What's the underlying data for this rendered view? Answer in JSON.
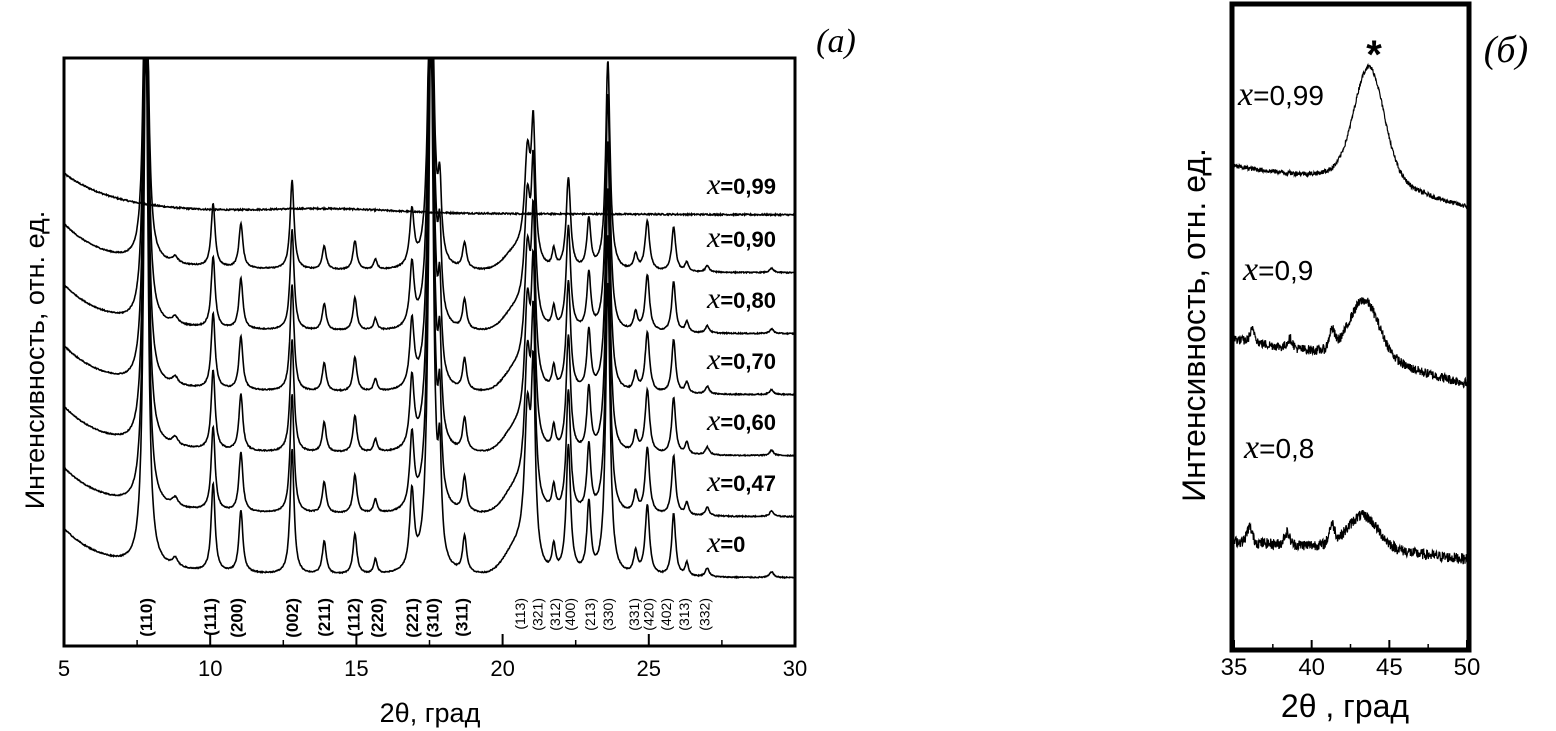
{
  "chart_data": [
    {
      "panel_label": "(а)",
      "type": "line",
      "xlabel": "2θ,  град",
      "ylabel": "Интенсивность, отн. ед.",
      "xlim": [
        5,
        30
      ],
      "x_ticks": [
        "5",
        "10",
        "15",
        "20",
        "25",
        "30"
      ],
      "minor_x_ticks": [
        7.5,
        12.5,
        17.5,
        22.5,
        27.5
      ],
      "y_ticks": false,
      "grid": false,
      "series": [
        {
          "name": "x=0.99",
          "label_var": "x",
          "label_value": "=0,99",
          "baseline": 6.0,
          "amorphous": true,
          "scale": 1.0
        },
        {
          "name": "x=0.90",
          "label_var": "x",
          "label_value": "=0,90",
          "baseline": 5.0,
          "amorphous": false,
          "scale": 0.75
        },
        {
          "name": "x=0.80",
          "label_var": "x",
          "label_value": "=0,80",
          "baseline": 4.0,
          "amorphous": false,
          "scale": 0.85
        },
        {
          "name": "x=0.70",
          "label_var": "x",
          "label_value": "=0,70",
          "baseline": 3.0,
          "amorphous": false,
          "scale": 0.9
        },
        {
          "name": "x=0.60",
          "label_var": "x",
          "label_value": "=0,60",
          "baseline": 2.0,
          "amorphous": false,
          "scale": 0.95
        },
        {
          "name": "x=0.47",
          "label_var": "x",
          "label_value": "=0,47",
          "baseline": 1.0,
          "amorphous": false,
          "scale": 1.0
        },
        {
          "name": "x=0",
          "label_var": "x",
          "label_value": "=0",
          "baseline": 0.0,
          "amorphous": false,
          "scale": 1.05
        }
      ],
      "peaks": [
        {
          "pos": 7.8,
          "height": 7.5,
          "width": 0.09
        },
        {
          "pos": 8.8,
          "height": 0.12,
          "width": 0.12
        },
        {
          "pos": 10.1,
          "height": 1.2,
          "width": 0.08
        },
        {
          "pos": 11.05,
          "height": 0.85,
          "width": 0.08
        },
        {
          "pos": 12.8,
          "height": 1.7,
          "width": 0.08
        },
        {
          "pos": 13.9,
          "height": 0.45,
          "width": 0.08
        },
        {
          "pos": 14.95,
          "height": 0.55,
          "width": 0.08
        },
        {
          "pos": 15.65,
          "height": 0.2,
          "width": 0.07
        },
        {
          "pos": 16.9,
          "height": 1.05,
          "width": 0.09
        },
        {
          "pos": 17.55,
          "height": 7.5,
          "width": 0.1
        },
        {
          "pos": 17.85,
          "height": 1.3,
          "width": 0.07
        },
        {
          "pos": 18.7,
          "height": 0.5,
          "width": 0.08
        },
        {
          "pos": 20.85,
          "height": 1.9,
          "width": 0.12
        },
        {
          "pos": 21.05,
          "height": 2.4,
          "width": 0.08
        },
        {
          "pos": 21.75,
          "height": 0.35,
          "width": 0.07
        },
        {
          "pos": 22.25,
          "height": 1.75,
          "width": 0.09
        },
        {
          "pos": 22.95,
          "height": 0.95,
          "width": 0.08
        },
        {
          "pos": 23.6,
          "height": 4.0,
          "width": 0.09
        },
        {
          "pos": 24.55,
          "height": 0.3,
          "width": 0.08
        },
        {
          "pos": 24.95,
          "height": 0.95,
          "width": 0.09
        },
        {
          "pos": 25.85,
          "height": 0.85,
          "width": 0.08
        },
        {
          "pos": 26.3,
          "height": 0.18,
          "width": 0.07
        },
        {
          "pos": 27.0,
          "height": 0.12,
          "width": 0.08
        },
        {
          "pos": 29.2,
          "height": 0.08,
          "width": 0.08
        }
      ],
      "annotations": [
        {
          "text": "(110)",
          "x": 7.8
        },
        {
          "text": "(111)",
          "x": 10.0
        },
        {
          "text": "(200)",
          "x": 10.9
        },
        {
          "text": "(002)",
          "x": 12.8
        },
        {
          "text": "(211)",
          "x": 13.9
        },
        {
          "text": "(112)",
          "x": 14.9
        },
        {
          "text": "(220)",
          "x": 15.7
        },
        {
          "text": "(221)",
          "x": 16.9
        },
        {
          "text": "(310)",
          "x": 17.6
        },
        {
          "text": "(311)",
          "x": 18.6
        },
        {
          "text": "(113)",
          "x": 20.6
        },
        {
          "text": "(321)",
          "x": 21.2
        },
        {
          "text": "(312)",
          "x": 21.8
        },
        {
          "text": "(400)",
          "x": 22.3
        },
        {
          "text": "(213)",
          "x": 23.0
        },
        {
          "text": "(330)",
          "x": 23.6
        },
        {
          "text": "(331)",
          "x": 24.5
        },
        {
          "text": "(420)",
          "x": 25.0
        },
        {
          "text": "(402)",
          "x": 25.6
        },
        {
          "text": "(313)",
          "x": 26.2
        },
        {
          "text": "(332)",
          "x": 26.9
        }
      ]
    },
    {
      "panel_label": "(б)",
      "type": "line",
      "xlabel": "2θ ,  град",
      "ylabel": "Интенсивность, отн. ед.",
      "xlim": [
        35,
        50
      ],
      "x_ticks": [
        "35",
        "40",
        "45",
        "50"
      ],
      "y_ticks": false,
      "grid": false,
      "marker_annotation": {
        "text": "*",
        "x": 43.8
      },
      "series": [
        {
          "name": "x=0.99",
          "label_var": "x",
          "label_value": "=0,99",
          "start_level": 0.7,
          "end_level": 0.0,
          "peak_pos": 43.7,
          "peak_height": 1.55,
          "noise": 0.04,
          "extra_peaks": []
        },
        {
          "name": "x=0.9",
          "label_var": "x",
          "label_value": "=0,9",
          "start_level": 0.75,
          "end_level": 0.0,
          "peak_pos": 43.4,
          "peak_height": 0.8,
          "noise": 0.08,
          "extra_peaks": [
            [
              36.2,
              0.2
            ],
            [
              38.6,
              0.15
            ],
            [
              41.3,
              0.3
            ]
          ]
        },
        {
          "name": "x=0.8",
          "label_var": "x",
          "label_value": "=0,8",
          "start_level": 0.3,
          "end_level": 0.0,
          "peak_pos": 43.3,
          "peak_height": 0.45,
          "noise": 0.09,
          "extra_peaks": [
            [
              36.0,
              0.25
            ],
            [
              38.4,
              0.2
            ],
            [
              41.3,
              0.3
            ]
          ]
        }
      ]
    }
  ]
}
